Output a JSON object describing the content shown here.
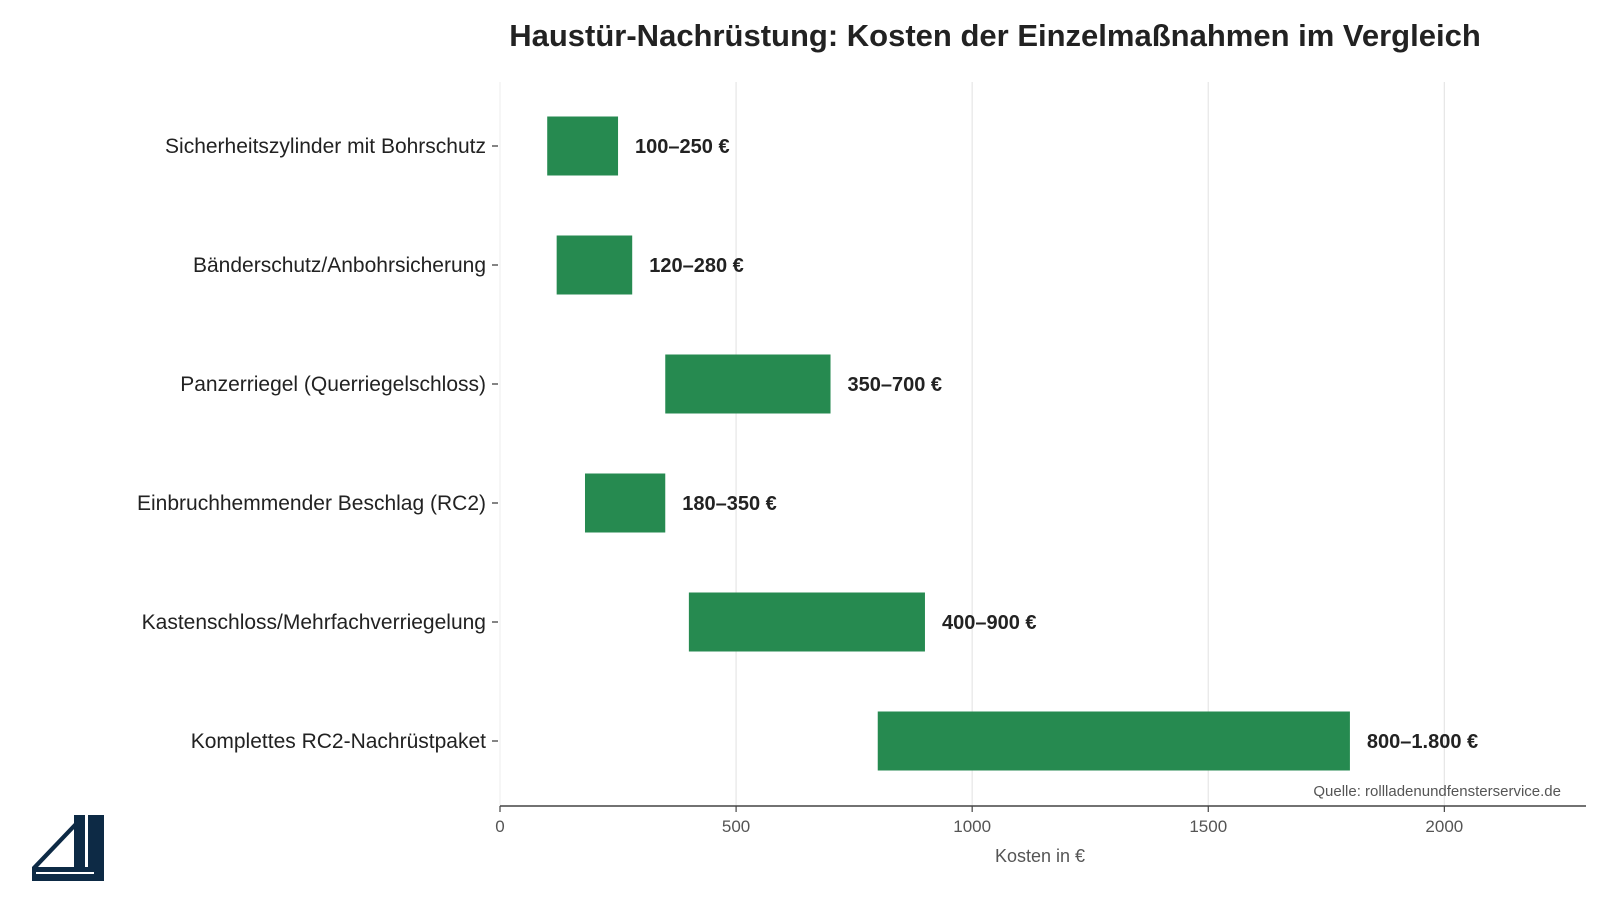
{
  "chart_data": {
    "type": "bar",
    "orientation": "horizontal-range",
    "title": "Haustür-Nachrüstung: Kosten der Einzelmaßnahmen im Vergleich",
    "xlabel": "Kosten in €",
    "ylabel": "",
    "xlim": [
      0,
      2300
    ],
    "xticks": [
      0,
      500,
      1000,
      1500,
      2000
    ],
    "grid": "vertical",
    "bar_color": "#268a50",
    "categories": [
      "Sicherheitszylinder mit Bohrschutz",
      "Bänderschutz/Anbohrsicherung",
      "Panzerriegel (Querriegelschloss)",
      "Einbruchhemmender Beschlag (RC2)",
      "Kastenschloss/Mehrfachverriegelung",
      "Komplettes RC2-Nachrüstpaket"
    ],
    "ranges": [
      [
        100,
        250
      ],
      [
        120,
        280
      ],
      [
        350,
        700
      ],
      [
        180,
        350
      ],
      [
        400,
        900
      ],
      [
        800,
        1800
      ]
    ],
    "data_labels": [
      "100–250 €",
      "120–280 €",
      "350–700 €",
      "180–350 €",
      "400–900 €",
      "800–1.800 €"
    ],
    "source_note": "Quelle: rollladenundfensterservice.de"
  },
  "logo": {
    "name": "window-logo",
    "color": "#0d2a45"
  }
}
